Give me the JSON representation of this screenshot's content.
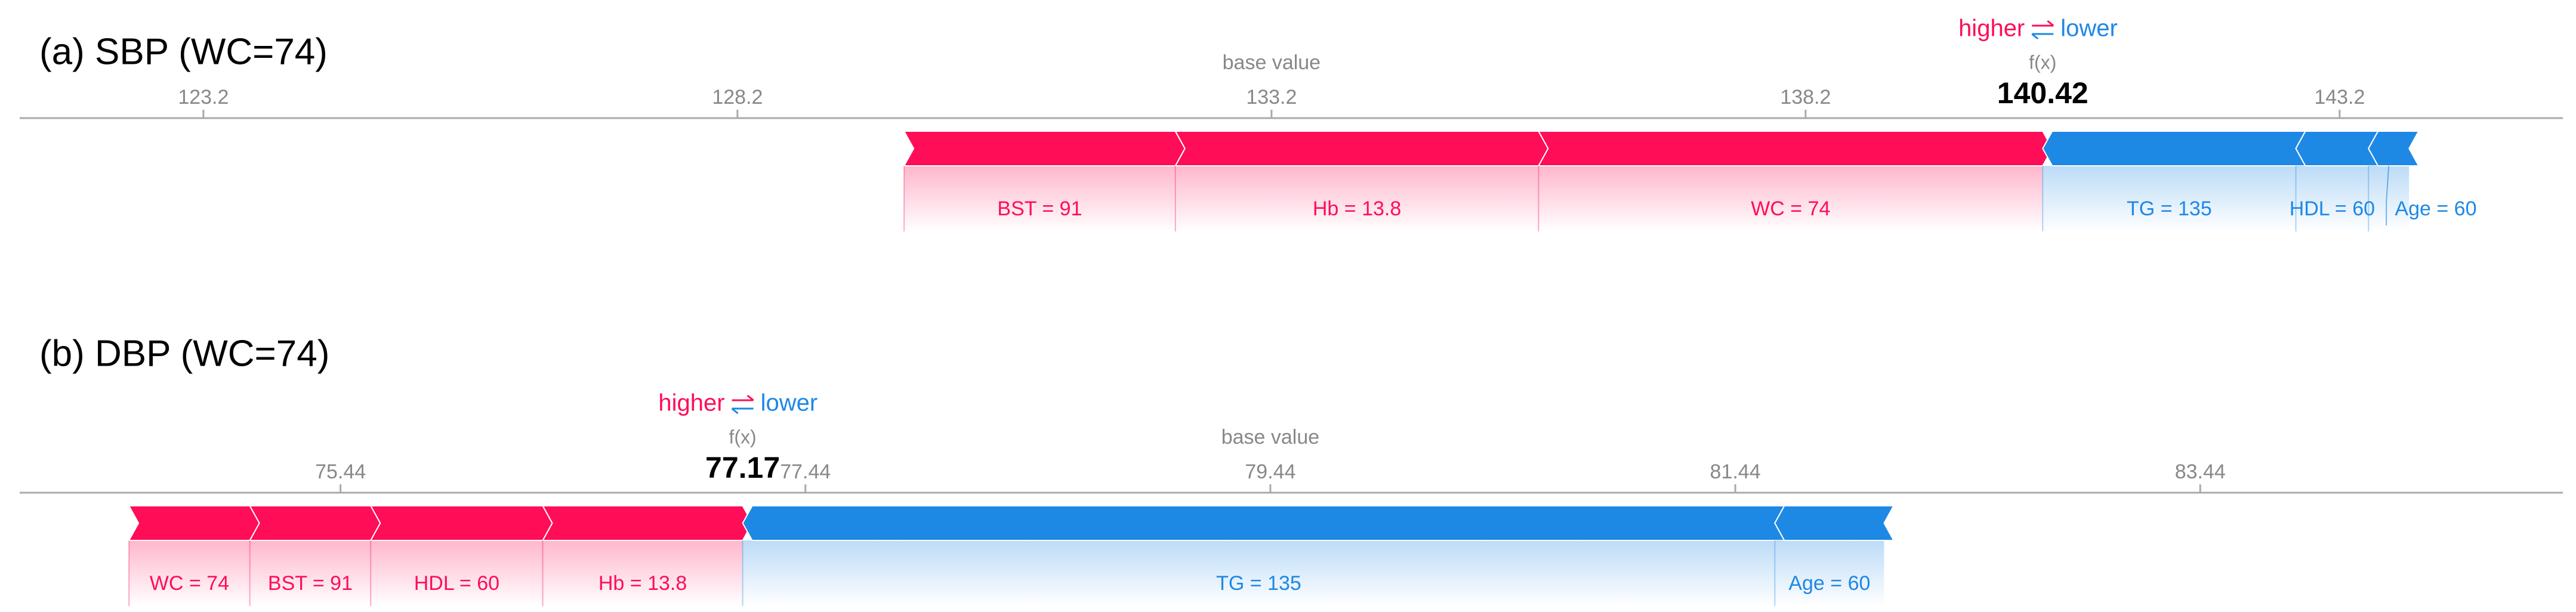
{
  "chart_data": [
    {
      "type": "force",
      "title": "(a) SBP (WC=74)",
      "xlim": [
        121.48,
        145.29
      ],
      "xticks": [
        123.2,
        128.2,
        133.2,
        138.2,
        143.2
      ],
      "base_value": 133.2,
      "base_label": "base value",
      "output_label": "f(x)",
      "output_value": 140.42,
      "higher_label": "higher",
      "lower_label": "lower",
      "colors": {
        "positive": "#ff0d57",
        "negative": "#1e88e5"
      },
      "features": [
        {
          "label": "BST = 91",
          "value": 2.54
        },
        {
          "label": "Hb = 13.8",
          "value": 3.4
        },
        {
          "label": "WC = 74",
          "value": 4.72
        },
        {
          "label": "TG = 135",
          "value": -2.37
        },
        {
          "label": "HDL = 60",
          "value": -0.68
        },
        {
          "label": "Age = 60",
          "value": -0.38
        }
      ]
    },
    {
      "type": "force",
      "title": "(b) DBP (WC=74)",
      "xlim": [
        74.06,
        85.0
      ],
      "xticks": [
        75.44,
        77.44,
        79.44,
        81.44,
        83.44
      ],
      "base_value": 79.44,
      "base_label": "base value",
      "output_label": "f(x)",
      "output_value": 77.17,
      "higher_label": "higher",
      "lower_label": "lower",
      "colors": {
        "positive": "#ff0d57",
        "negative": "#1e88e5"
      },
      "features": [
        {
          "label": "WC = 74",
          "value": 0.52
        },
        {
          "label": "BST = 91",
          "value": 0.52
        },
        {
          "label": "HDL = 60",
          "value": 0.74
        },
        {
          "label": "Hb = 13.8",
          "value": 0.86
        },
        {
          "label": "TG = 135",
          "value": -4.44
        },
        {
          "label": "Age = 60",
          "value": -0.47
        }
      ]
    }
  ]
}
